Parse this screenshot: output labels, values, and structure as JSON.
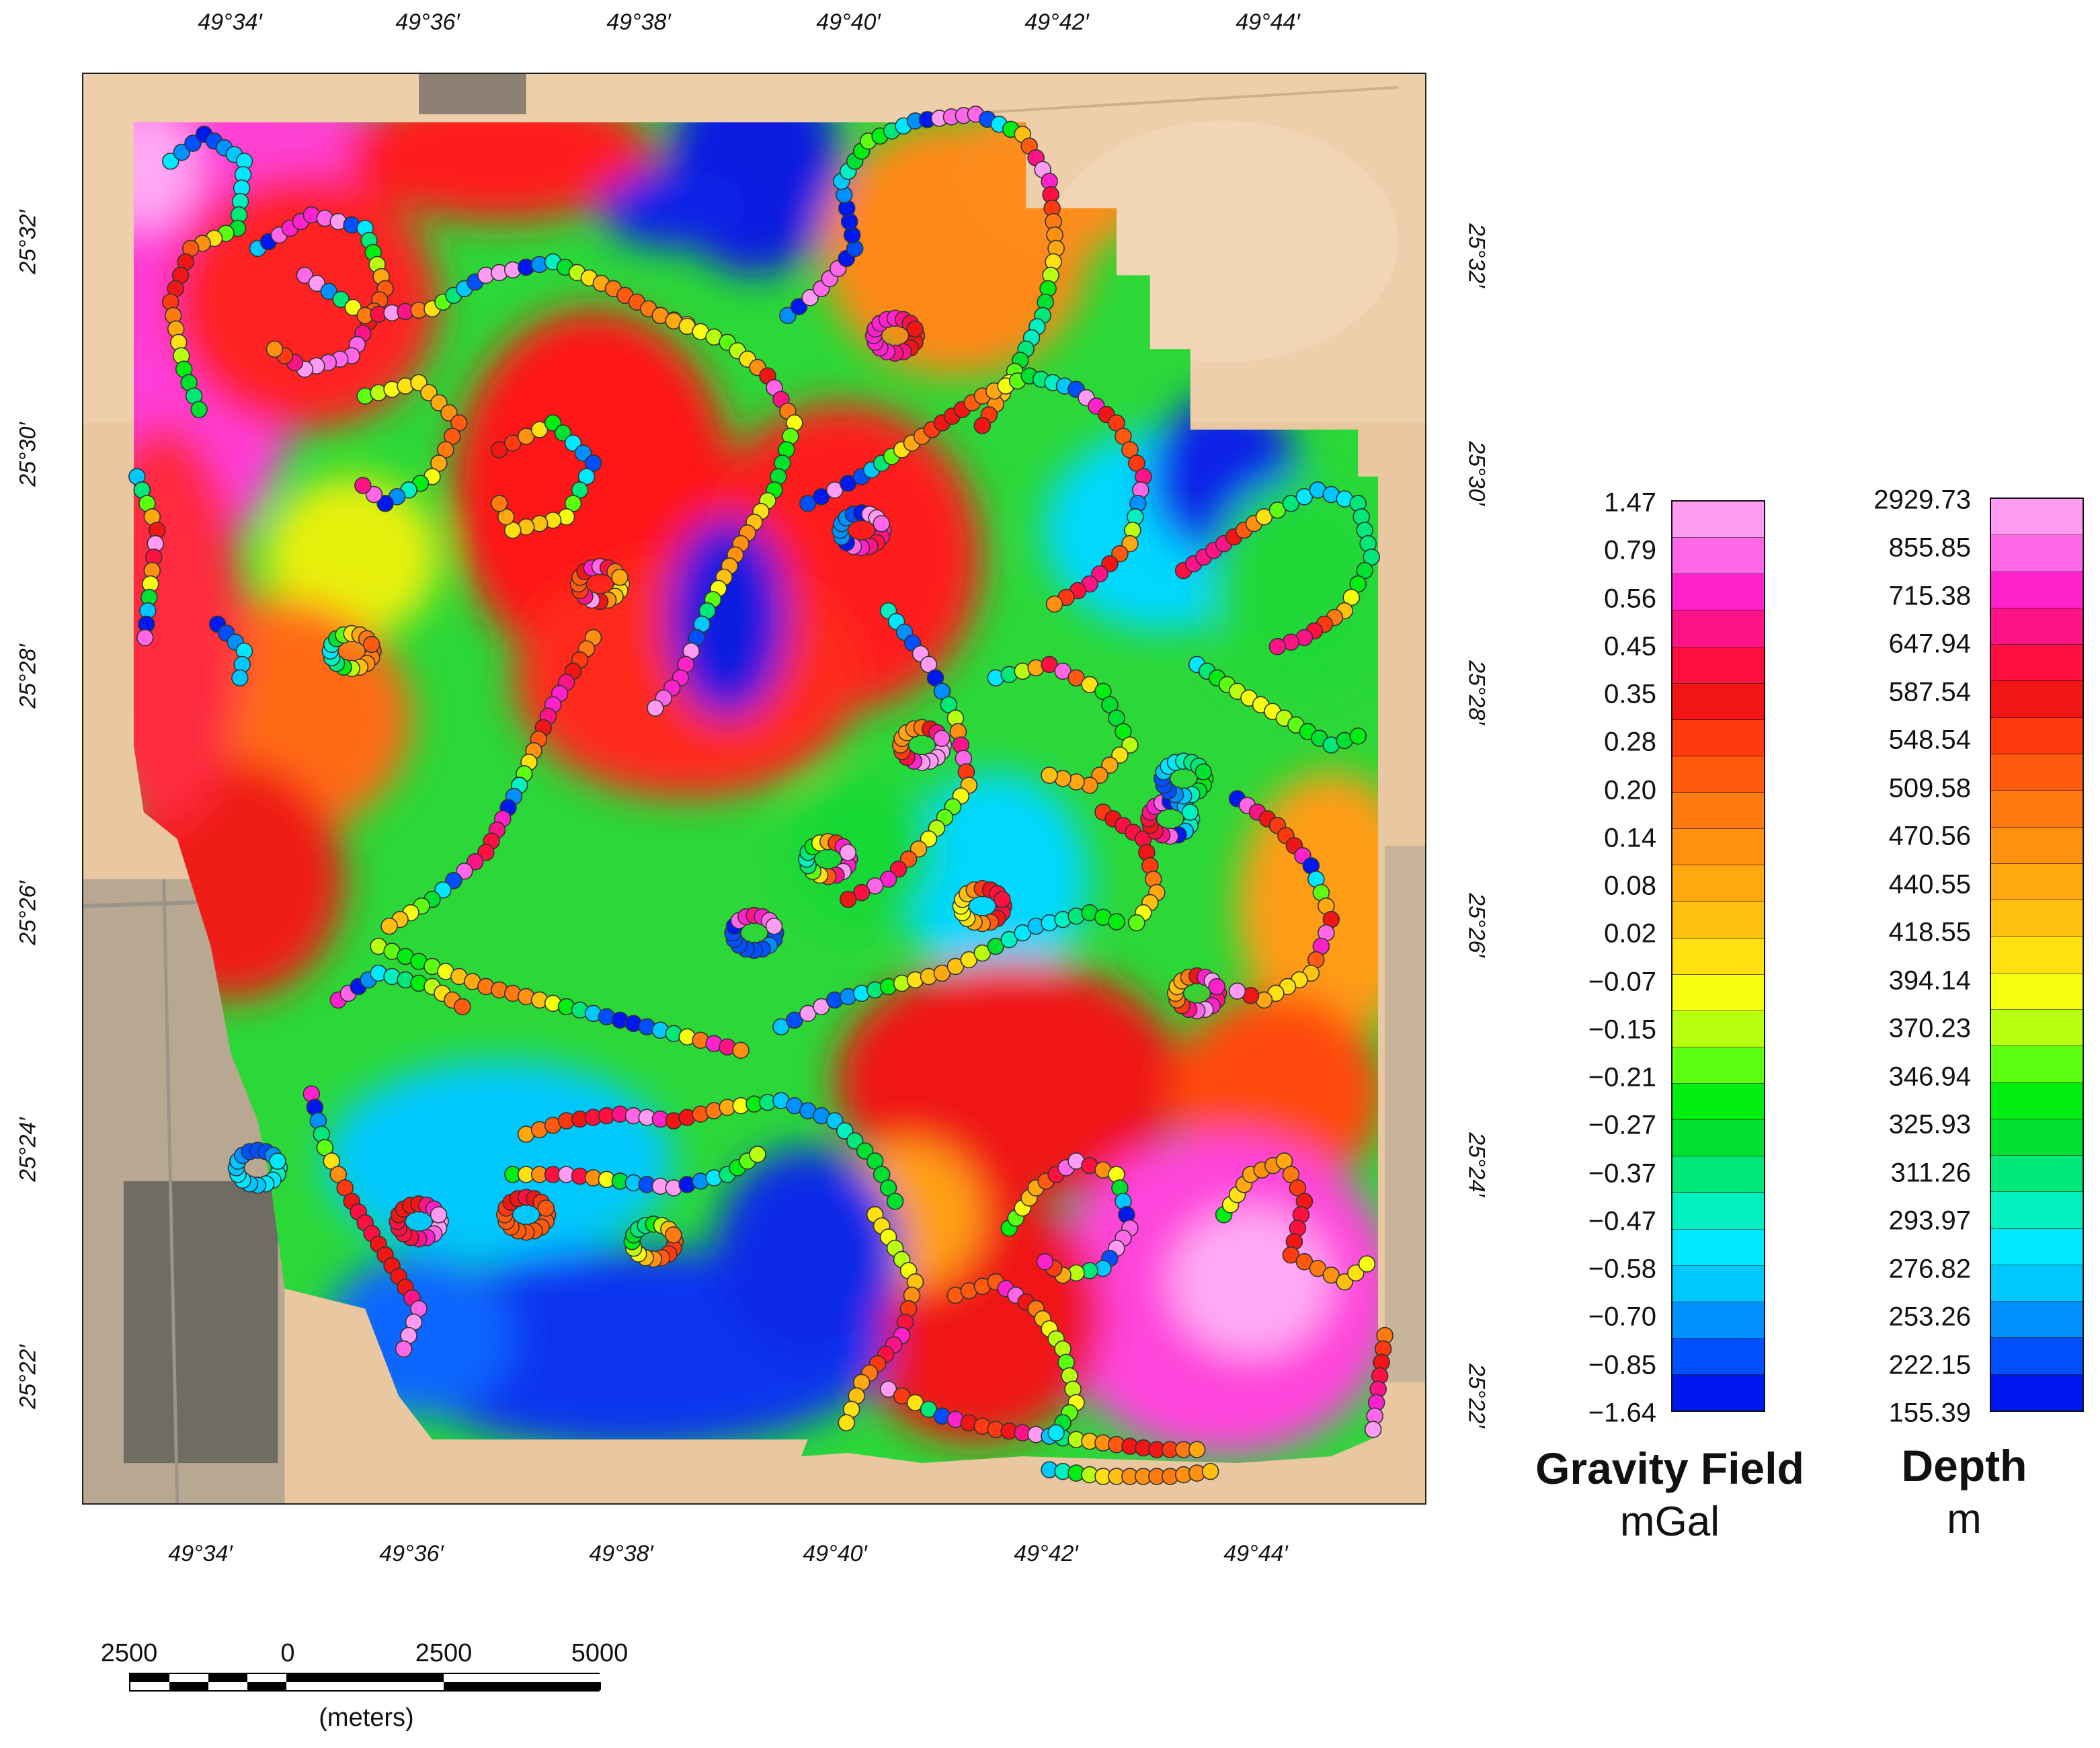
{
  "map": {
    "top_ticks": [
      "49°34′",
      "49°36′",
      "49°38′",
      "49°40′",
      "49°42′",
      "49°44′"
    ],
    "bottom_ticks": [
      "49°34′",
      "49°36′",
      "49°38′",
      "49°40′",
      "49°42′",
      "49°44′"
    ],
    "left_ticks": [
      "25°32′",
      "25°30′",
      "25°28′",
      "25°26′",
      "25°24′",
      "25°22′"
    ],
    "right_ticks": [
      "25°32′",
      "25°30′",
      "25°28′",
      "25°26′",
      "25°24′",
      "25°22′"
    ]
  },
  "gravity_legend": {
    "title": "Gravity Field",
    "unit": "mGal",
    "labels": [
      "1.47",
      "0.79",
      "0.56",
      "0.45",
      "0.35",
      "0.28",
      "0.20",
      "0.14",
      "0.08",
      "0.02",
      "−0.07",
      "−0.15",
      "−0.21",
      "−0.27",
      "−0.37",
      "−0.47",
      "−0.58",
      "−0.70",
      "−0.85",
      "−1.64"
    ]
  },
  "depth_legend": {
    "title": "Depth",
    "unit": "m",
    "labels": [
      "2929.73",
      "855.85",
      "715.38",
      "647.94",
      "587.54",
      "548.54",
      "509.58",
      "470.56",
      "440.55",
      "418.55",
      "394.14",
      "370.23",
      "346.94",
      "325.93",
      "311.26",
      "293.97",
      "276.82",
      "253.26",
      "222.15",
      "155.39"
    ]
  },
  "color_ramp": [
    "#ff9bf2",
    "#ff66e8",
    "#ff22cc",
    "#ff1488",
    "#ff1040",
    "#f01616",
    "#ff3a10",
    "#ff5a10",
    "#ff7a10",
    "#ff9010",
    "#ffa810",
    "#ffc010",
    "#ffe010",
    "#f6ff10",
    "#b8ff10",
    "#5cff10",
    "#00ee10",
    "#00e030",
    "#00e878",
    "#00f0c0",
    "#00e8ff",
    "#00c8ff",
    "#0090ff",
    "#0050ff",
    "#0018f0"
  ],
  "scale_bar": {
    "numbers": [
      "2500",
      "0",
      "2500",
      "5000"
    ],
    "caption": "(meters)"
  }
}
